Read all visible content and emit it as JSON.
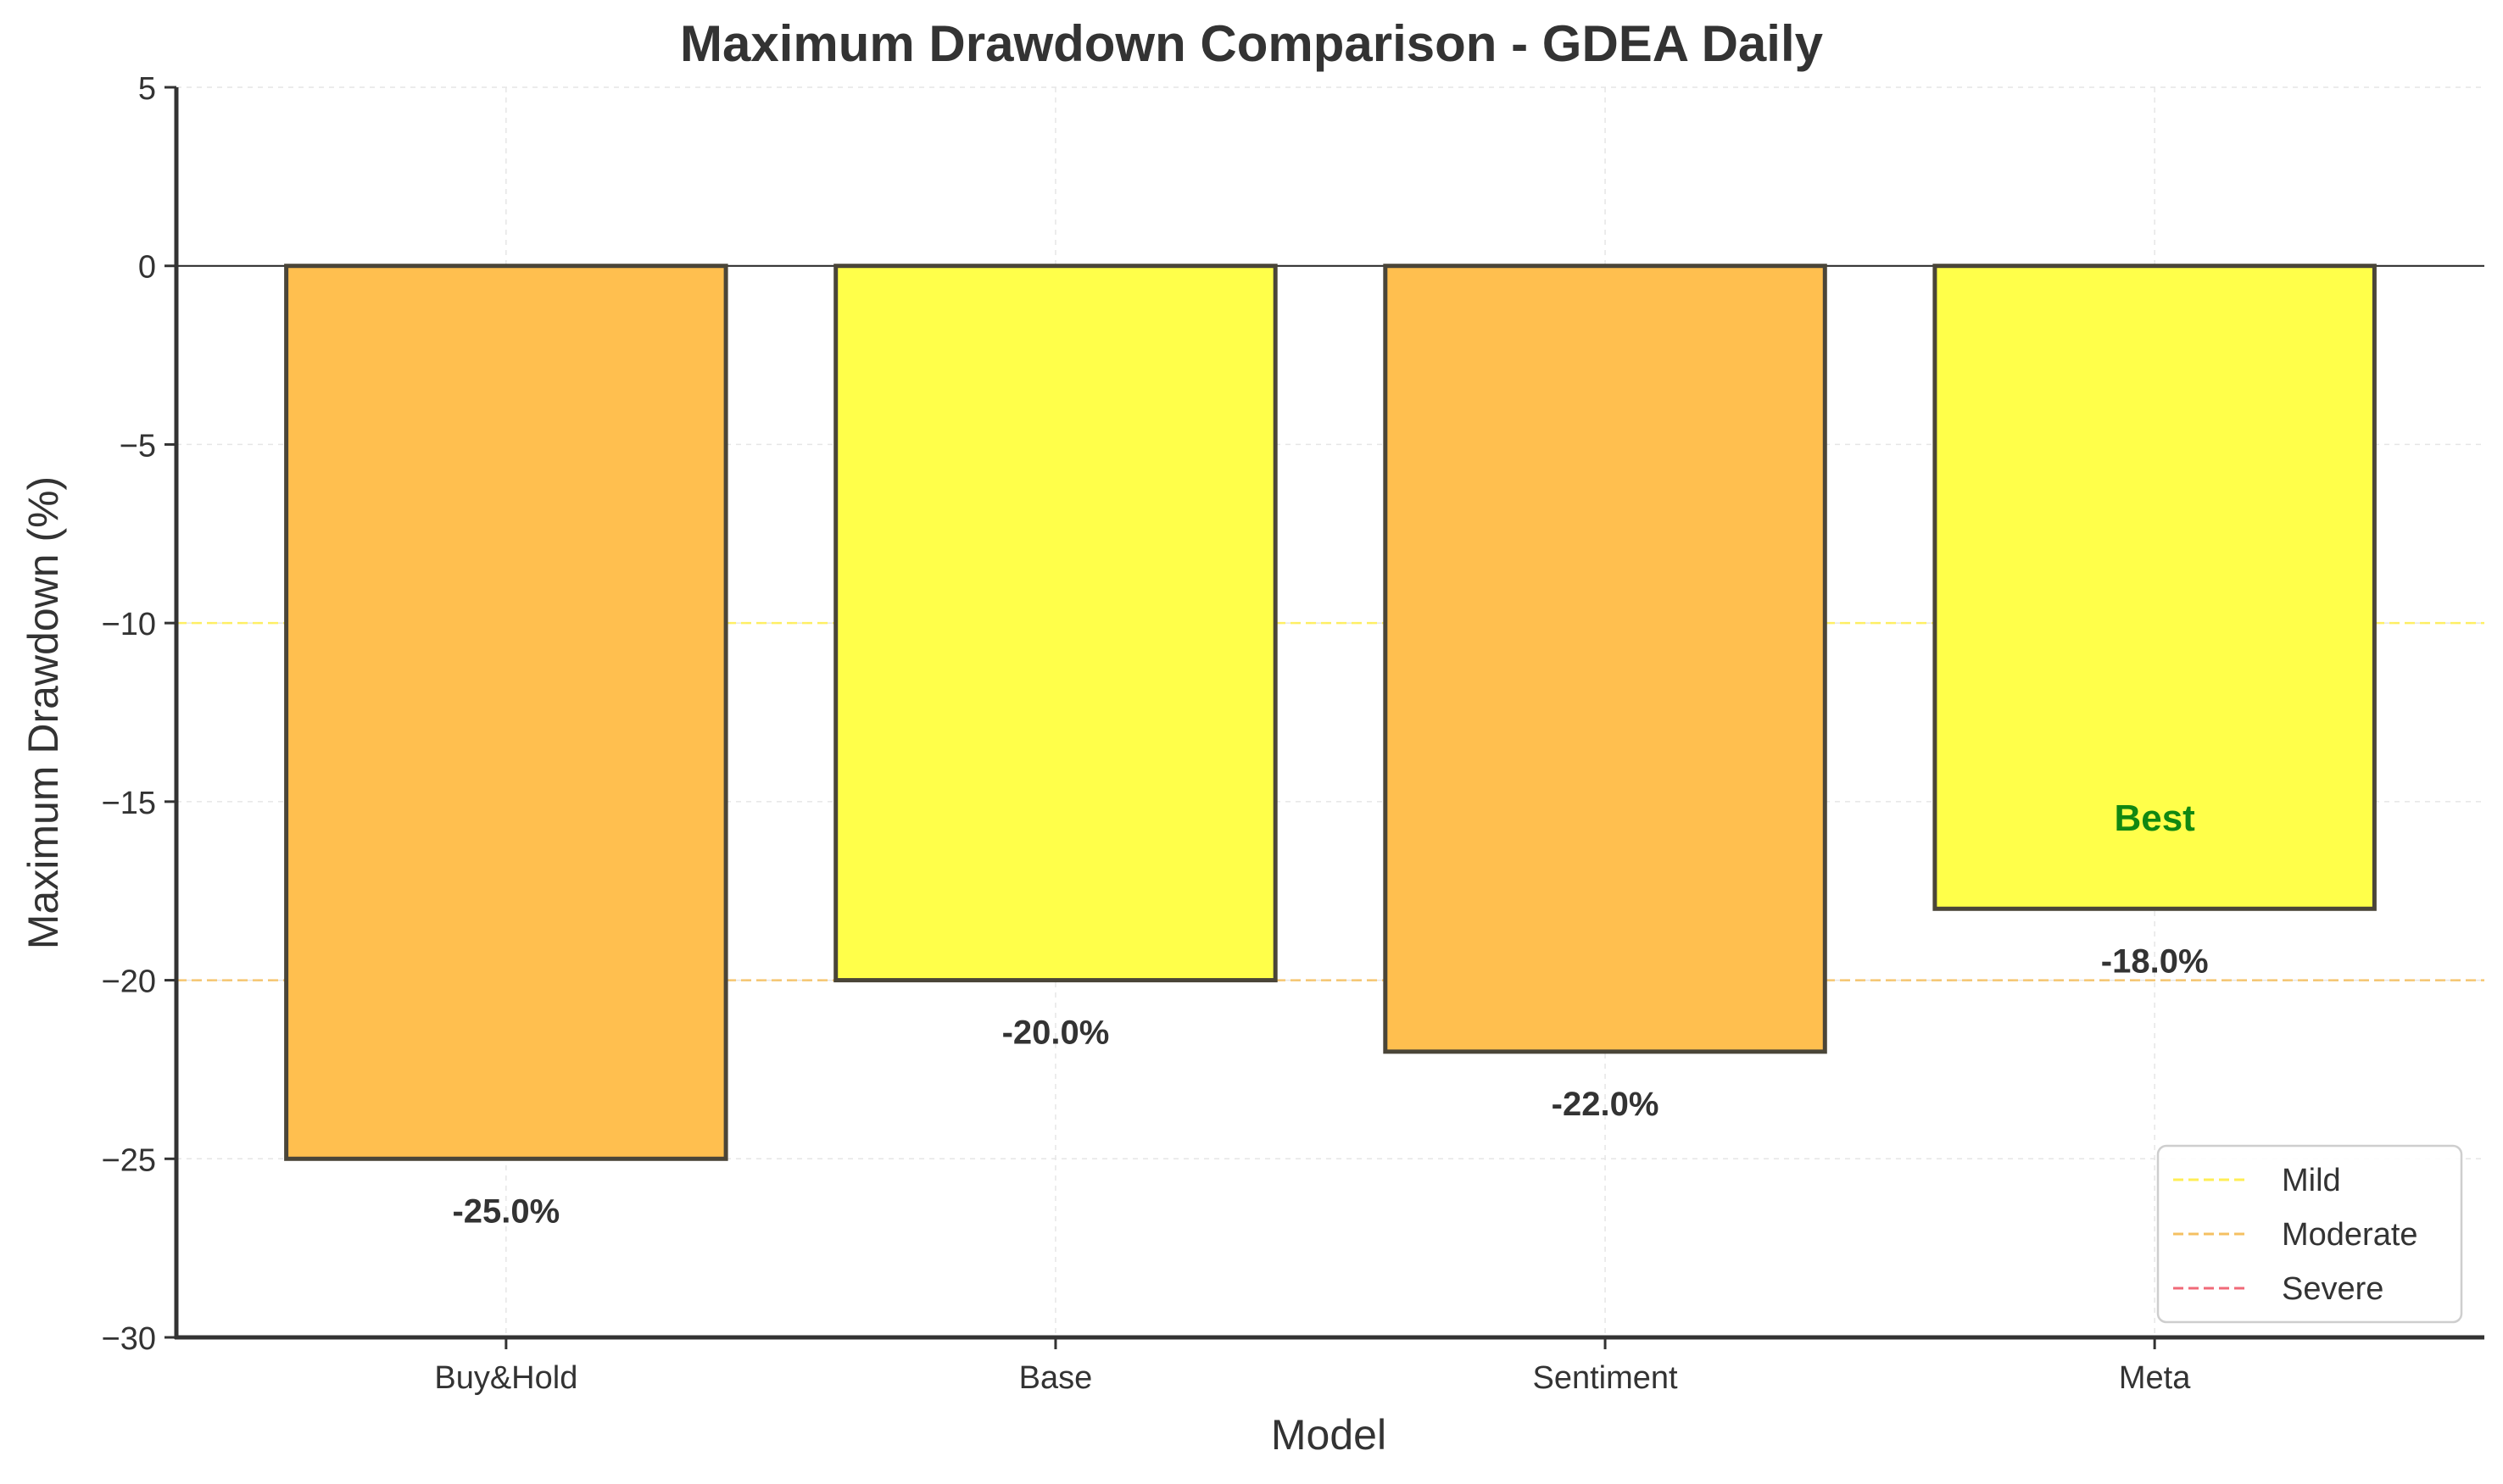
{
  "chart_data": {
    "type": "bar",
    "title": "Maximum Drawdown Comparison - GDEA Daily",
    "xlabel": "Model",
    "ylabel": "Maximum Drawdown (%)",
    "ylim": [
      -30,
      5
    ],
    "yticks": [
      5,
      0,
      -5,
      -10,
      -15,
      -20,
      -25,
      -30
    ],
    "ytick_labels": [
      "5",
      "0",
      "−5",
      "−10",
      "−15",
      "−20",
      "−25",
      "−30"
    ],
    "categories": [
      "Buy&Hold",
      "Base",
      "Sentiment",
      "Meta"
    ],
    "values": [
      -25.0,
      -20.0,
      -22.0,
      -18.0
    ],
    "value_labels": [
      "-25.0%",
      "-20.0%",
      "-22.0%",
      "-18.0%"
    ],
    "bar_colors": [
      "#ffbf4f",
      "#ffff4a",
      "#ffbf4f",
      "#ffff4a"
    ],
    "bar_edge_color": "#4a4538",
    "best_index": 3,
    "best_label": "Best",
    "best_color": "#118811",
    "grid": true,
    "reference_lines": [
      {
        "name": "Mild",
        "value": -10,
        "color": "#ffee55"
      },
      {
        "name": "Moderate",
        "value": -20,
        "color": "#f5c062"
      },
      {
        "name": "Severe",
        "value": -30,
        "color": "#f06a78"
      }
    ],
    "legend_position": "lower-right"
  }
}
